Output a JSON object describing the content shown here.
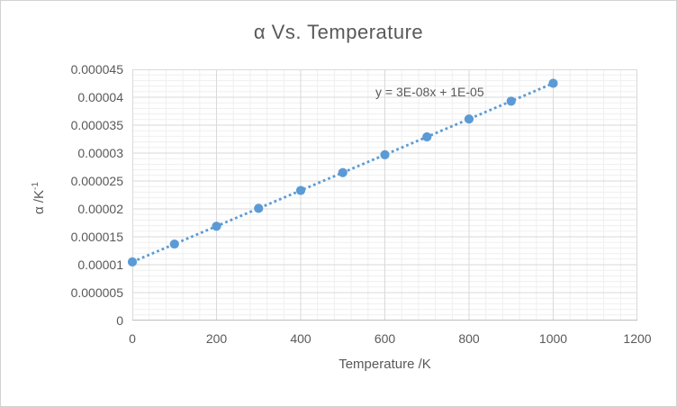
{
  "chart": {
    "ylabel_base": "α /K",
    "ylabel_sup": "-1"
  },
  "chart_data": {
    "type": "scatter",
    "title": "α Vs. Temperature",
    "xlabel": "Temperature /K",
    "ylabel": "α /K⁻¹",
    "x": [
      0,
      100,
      200,
      300,
      400,
      500,
      600,
      700,
      800,
      900,
      1000
    ],
    "y": [
      1.05e-05,
      1.37e-05,
      1.69e-05,
      2.01e-05,
      2.33e-05,
      2.65e-05,
      2.97e-05,
      3.29e-05,
      3.61e-05,
      3.93e-05,
      4.25e-05
    ],
    "trendline": {
      "style": "dotted",
      "slope": 3e-08,
      "intercept": 1e-05,
      "equation": "y = 3E-08x + 1E-05"
    },
    "xlim": [
      0,
      1200
    ],
    "ylim": [
      0,
      4.5e-05
    ],
    "x_major_unit": 200,
    "x_minor_unit": 40,
    "y_major_unit": 5e-06,
    "y_minor_unit": 1e-06,
    "x_ticks": [
      "0",
      "200",
      "400",
      "600",
      "800",
      "1000",
      "1200"
    ],
    "y_ticks": [
      "0",
      "0.000005",
      "0.00001",
      "0.000015",
      "0.00002",
      "0.000025",
      "0.00003",
      "0.000035",
      "0.00004",
      "0.000045"
    ],
    "grid": "major+minor",
    "legend": "none",
    "colors": {
      "series": "#5B9BD5",
      "text": "#595959",
      "grid_major": "#d9d9d9",
      "grid_minor": "#efefef",
      "axis_line": "#bfbfbf",
      "frame_border": "#d2d2d2"
    }
  }
}
